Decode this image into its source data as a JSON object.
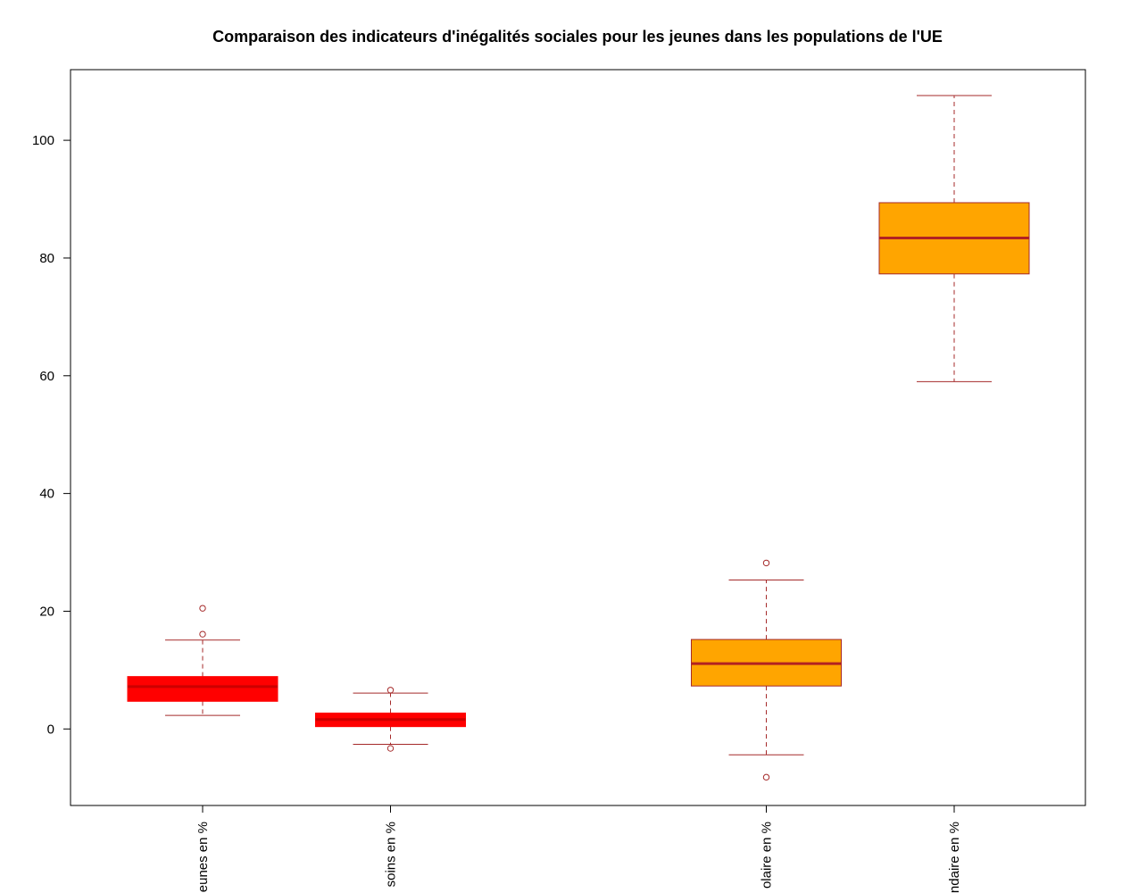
{
  "chart_data": {
    "type": "boxplot",
    "title": "Comparaison des indicateurs d'inégalités sociales pour les jeunes dans les populations de l'UE",
    "xlabel": "",
    "ylabel": "",
    "ylim": [
      -13,
      112
    ],
    "yticks": [
      0,
      20,
      40,
      60,
      80,
      100
    ],
    "grid": false,
    "legend": "none",
    "colors": {
      "red_fill": "#ff0000",
      "orange_fill": "#ffa500",
      "outline": "#a52a2a",
      "median_orange": "#b22222"
    },
    "categories": [
      "eunes en %",
      "soins en %",
      "olaire en %",
      "ndaire en %"
    ],
    "boxes": [
      {
        "category": "eunes en %",
        "position": 1,
        "fill": "#ff0000",
        "whisker_low": 2.3,
        "q1": 4.7,
        "median": 7.2,
        "q3": 8.9,
        "whisker_high": 15.1,
        "outliers": [
          16.1,
          20.5
        ]
      },
      {
        "category": "soins en %",
        "position": 2,
        "fill": "#ff0000",
        "whisker_low": -2.6,
        "q1": 0.4,
        "median": 1.6,
        "q3": 2.7,
        "whisker_high": 6.1,
        "outliers": [
          6.6,
          -3.3
        ]
      },
      {
        "category": "olaire en %",
        "position": 4,
        "fill": "#ffa500",
        "whisker_low": -4.4,
        "q1": 7.3,
        "median": 11.1,
        "q3": 15.2,
        "whisker_high": 25.3,
        "outliers": [
          28.2,
          -8.2
        ]
      },
      {
        "category": "ndaire en %",
        "position": 5,
        "fill": "#ffa500",
        "whisker_low": 59.0,
        "q1": 77.3,
        "median": 83.4,
        "q3": 89.4,
        "whisker_high": 107.6,
        "outliers": []
      }
    ]
  }
}
